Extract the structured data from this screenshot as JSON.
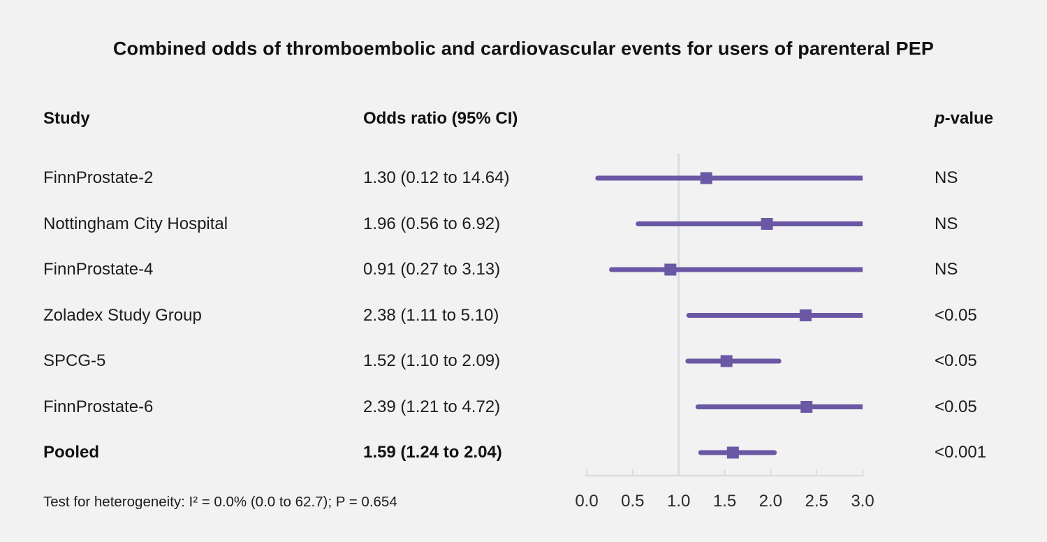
{
  "title": "Combined odds of thromboembolic and cardiovascular events for users of parenteral PEP",
  "columns": {
    "study": "Study",
    "odds_ratio": "Odds ratio (95% CI)",
    "p_value_prefix": "p",
    "p_value_suffix": "-value"
  },
  "footer": "Test for heterogeneity: I² = 0.0% (0.0 to 62.7); P = 0.654",
  "colors": {
    "background": "#f2f2f2",
    "accent_purple": "#6a58a5",
    "axis_gray": "#d9dde2",
    "text": "#1c1c1c"
  },
  "chart_data": {
    "type": "forest",
    "title": "Combined odds of thromboembolic and cardiovascular events for users of parenteral PEP",
    "xlabel": "",
    "ylabel": "",
    "x_range": [
      0.0,
      3.0
    ],
    "reference_line": 1.0,
    "grid": false,
    "x_axis": {
      "ticks": [
        0.0,
        0.5,
        1.0,
        1.5,
        2.0,
        2.5,
        3.0
      ],
      "tick_labels": [
        "0.0",
        "0.5",
        "1.0",
        "1.5",
        "2.0",
        "2.5",
        "3.0"
      ]
    },
    "rows": [
      {
        "study": "FinnProstate-2",
        "or_label": "1.30 (0.12 to 14.64)",
        "or": 1.3,
        "ci_low": 0.12,
        "ci_high": 14.64,
        "p": "NS",
        "bold": false
      },
      {
        "study": "Nottingham City Hospital",
        "or_label": "1.96 (0.56 to 6.92)",
        "or": 1.96,
        "ci_low": 0.56,
        "ci_high": 6.92,
        "p": "NS",
        "bold": false
      },
      {
        "study": "FinnProstate-4",
        "or_label": "0.91 (0.27 to 3.13)",
        "or": 0.91,
        "ci_low": 0.27,
        "ci_high": 3.13,
        "p": "NS",
        "bold": false
      },
      {
        "study": "Zoladex Study Group",
        "or_label": "2.38 (1.11 to 5.10)",
        "or": 2.38,
        "ci_low": 1.11,
        "ci_high": 5.1,
        "p": "<0.05",
        "bold": false
      },
      {
        "study": "SPCG-5",
        "or_label": "1.52 (1.10 to 2.09)",
        "or": 1.52,
        "ci_low": 1.1,
        "ci_high": 2.09,
        "p": "<0.05",
        "bold": false
      },
      {
        "study": "FinnProstate-6",
        "or_label": "2.39 (1.21 to 4.72)",
        "or": 2.39,
        "ci_low": 1.21,
        "ci_high": 4.72,
        "p": "<0.05",
        "bold": false
      },
      {
        "study": "Pooled",
        "or_label": "1.59 (1.24 to 2.04)",
        "or": 1.59,
        "ci_low": 1.24,
        "ci_high": 2.04,
        "p": "<0.001",
        "bold": true
      }
    ]
  }
}
